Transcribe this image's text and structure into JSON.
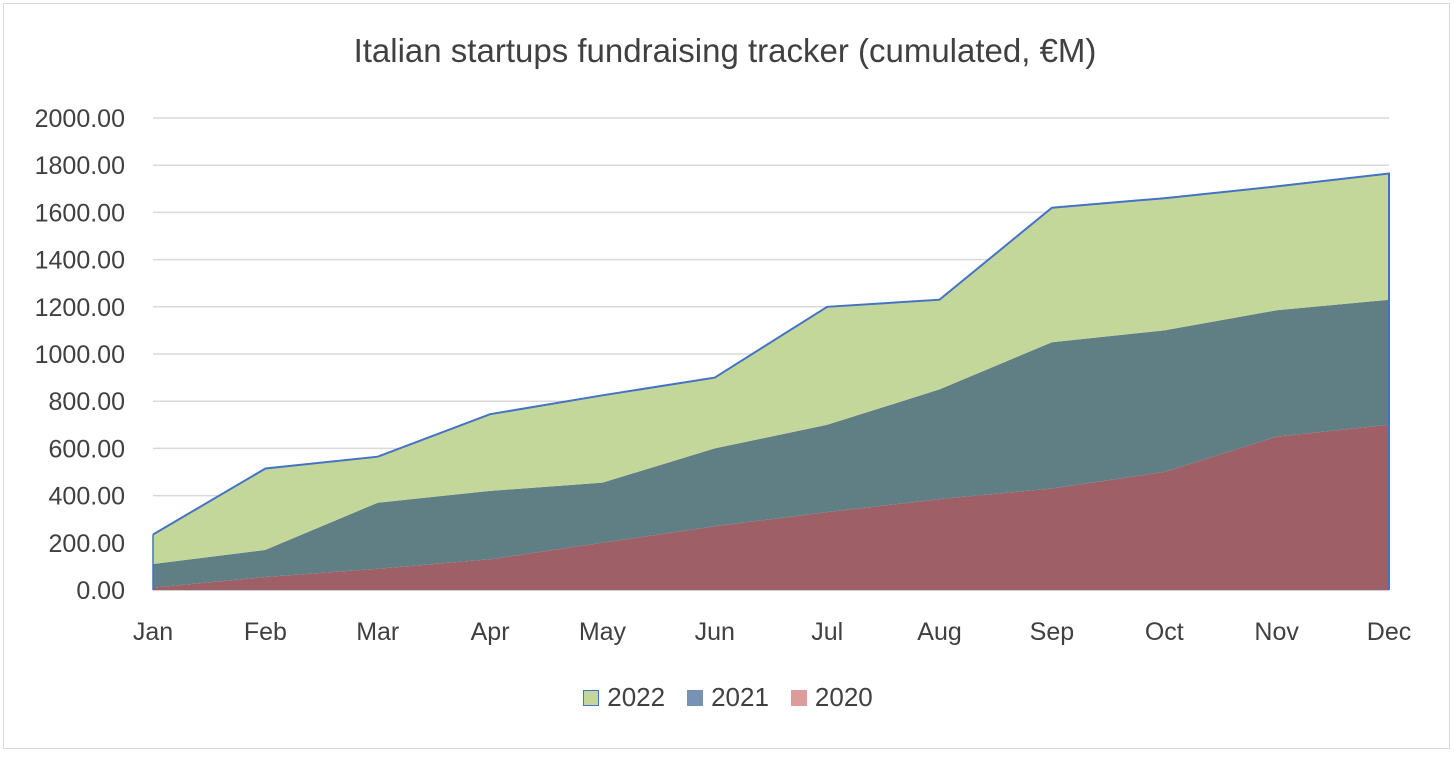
{
  "chart_data": {
    "type": "area",
    "stacked": true,
    "title": "Italian startups fundraising tracker (cumulated, €M)",
    "xlabel": "",
    "ylabel": "",
    "categories": [
      "Jan",
      "Feb",
      "Mar",
      "Apr",
      "May",
      "Jun",
      "Jul",
      "Aug",
      "Sep",
      "Oct",
      "Nov",
      "Dec"
    ],
    "ylim": [
      0,
      2000
    ],
    "yticks": [
      "0.00",
      "200.00",
      "400.00",
      "600.00",
      "800.00",
      "1000.00",
      "1200.00",
      "1400.00",
      "1600.00",
      "1800.00",
      "2000.00"
    ],
    "grid": true,
    "legend_position": "bottom",
    "series": [
      {
        "name": "2020",
        "color": "#9e6066",
        "legend_color": "#de9b9b",
        "values": [
          10,
          55,
          90,
          130,
          200,
          270,
          330,
          385,
          430,
          500,
          650,
          700
        ]
      },
      {
        "name": "2021",
        "color": "#607f85",
        "legend_color": "#7892b5",
        "values": [
          100,
          115,
          280,
          290,
          255,
          330,
          370,
          465,
          620,
          600,
          535,
          530
        ]
      },
      {
        "name": "2022",
        "color": "#c4d79b",
        "legend_color": "#c4d79b",
        "values": [
          125,
          345,
          195,
          325,
          370,
          300,
          500,
          380,
          570,
          560,
          525,
          535
        ]
      }
    ],
    "outline_color": "#4472c4",
    "legend_order": [
      "2022",
      "2021",
      "2020"
    ]
  }
}
